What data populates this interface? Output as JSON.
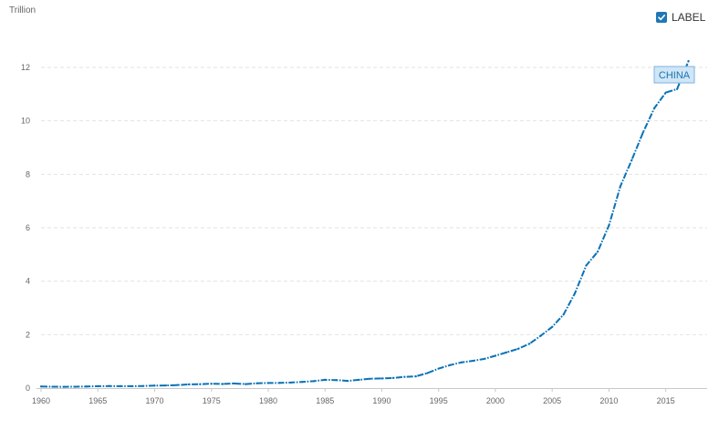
{
  "legend_toggle": {
    "label": "LABEL",
    "checked": true
  },
  "colors": {
    "series": "#0a72b6",
    "tag_fill": "#cfe6f7",
    "tag_stroke": "#7fb3dc",
    "grid": "#e2e2e2"
  },
  "chart_data": {
    "type": "line",
    "ylabel": "Trillion",
    "xlim": [
      1960,
      2018
    ],
    "ylim": [
      0,
      12
    ],
    "x_ticks": [
      1960,
      1965,
      1970,
      1975,
      1980,
      1985,
      1990,
      1995,
      2000,
      2005,
      2010,
      2015
    ],
    "y_ticks": [
      0,
      2,
      4,
      6,
      8,
      10,
      12
    ],
    "grid": "horizontal dashed",
    "series": [
      {
        "name": "CHINA",
        "x": [
          1960,
          1961,
          1962,
          1963,
          1964,
          1965,
          1966,
          1967,
          1968,
          1969,
          1970,
          1971,
          1972,
          1973,
          1974,
          1975,
          1976,
          1977,
          1978,
          1979,
          1980,
          1981,
          1982,
          1983,
          1984,
          1985,
          1986,
          1987,
          1988,
          1989,
          1990,
          1991,
          1992,
          1993,
          1994,
          1995,
          1996,
          1997,
          1998,
          1999,
          2000,
          2001,
          2002,
          2003,
          2004,
          2005,
          2006,
          2007,
          2008,
          2009,
          2010,
          2011,
          2012,
          2013,
          2014,
          2015,
          2016,
          2017
        ],
        "values": [
          0.06,
          0.05,
          0.047,
          0.05,
          0.059,
          0.07,
          0.076,
          0.072,
          0.07,
          0.079,
          0.093,
          0.1,
          0.114,
          0.139,
          0.145,
          0.163,
          0.154,
          0.175,
          0.15,
          0.18,
          0.19,
          0.196,
          0.209,
          0.233,
          0.26,
          0.31,
          0.3,
          0.27,
          0.31,
          0.35,
          0.36,
          0.38,
          0.42,
          0.44,
          0.56,
          0.73,
          0.86,
          0.96,
          1.02,
          1.09,
          1.21,
          1.34,
          1.47,
          1.66,
          1.96,
          2.29,
          2.75,
          3.55,
          4.59,
          5.1,
          6.09,
          7.55,
          8.53,
          9.57,
          10.48,
          11.06,
          11.19,
          12.24
        ]
      }
    ]
  }
}
